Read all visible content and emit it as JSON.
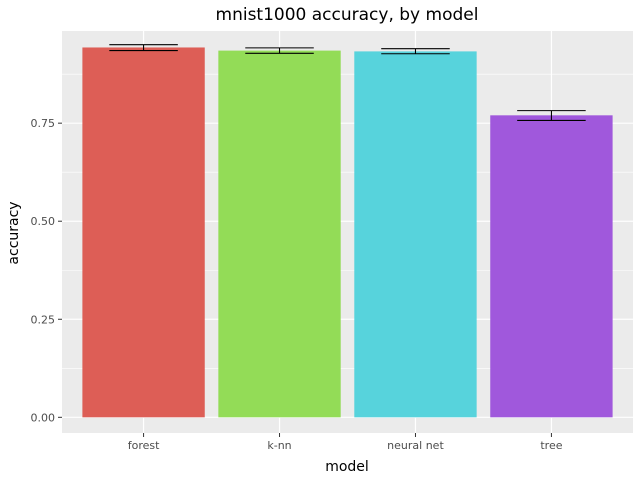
{
  "chart_data": {
    "type": "bar",
    "title": "mnist1000 accuracy, by model",
    "xlabel": "model",
    "ylabel": "accuracy",
    "categories": [
      "forest",
      "k-nn",
      "neural net",
      "tree"
    ],
    "values": [
      0.943,
      0.935,
      0.933,
      0.77
    ],
    "error_low": [
      0.935,
      0.928,
      0.927,
      0.757
    ],
    "error_high": [
      0.95,
      0.942,
      0.94,
      0.782
    ],
    "colors": [
      "#dd5e56",
      "#93dc57",
      "#57d3dc",
      "#a058dc"
    ],
    "ylim": [
      -0.04,
      0.985
    ],
    "yticks": [
      0.0,
      0.25,
      0.5,
      0.75
    ],
    "ytick_labels": [
      "0.00",
      "0.25",
      "0.50",
      "0.75"
    ],
    "grid": true,
    "legend": "none",
    "panel_background": "#ebebeb",
    "grid_color": "#ffffff"
  }
}
